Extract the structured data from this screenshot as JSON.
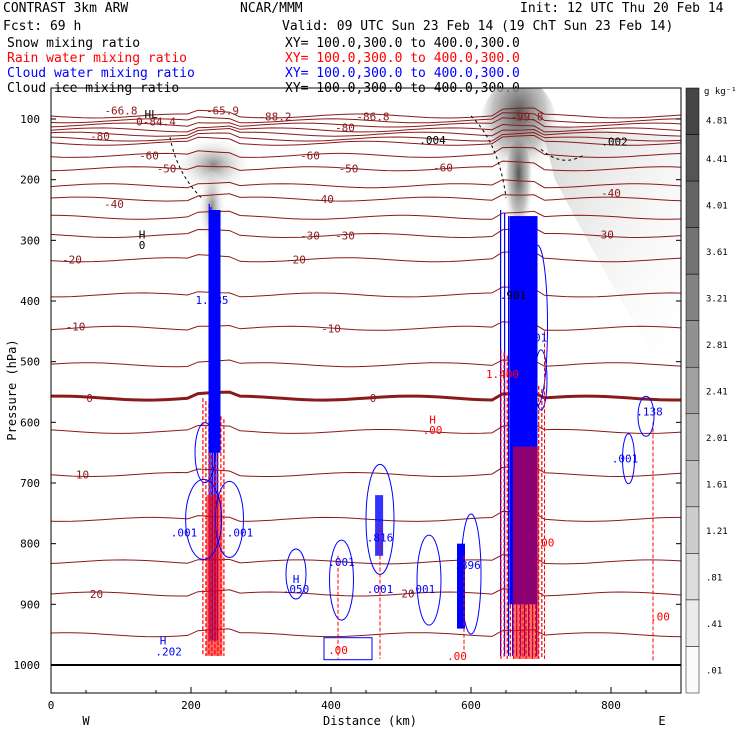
{
  "header": {
    "title_left": "CONTRAST  3km ARW",
    "title_center": "NCAR/MMM",
    "init": "Init: 12 UTC Thu 20 Feb 14",
    "fcst": "Fcst:   69 h",
    "valid": "Valid: 09 UTC Sun 23 Feb 14 (19 ChT Sun 23 Feb 14)"
  },
  "fields": [
    {
      "name": "Snow mixing ratio",
      "xy": "XY= 100.0,300.0 to 400.0,300.0",
      "color": "#000000"
    },
    {
      "name": "Rain water mixing ratio",
      "xy": "XY= 100.0,300.0 to 400.0,300.0",
      "color": "#ff0000"
    },
    {
      "name": "Cloud water mixing ratio",
      "xy": "XY= 100.0,300.0 to 400.0,300.0",
      "color": "#0000ff"
    },
    {
      "name": "Cloud ice mixing ratio",
      "xy": "XY= 100.0,300.0 to 400.0,300.0",
      "color": "#000000"
    }
  ],
  "colorbar": {
    "unit": "g kg⁻¹",
    "labels": [
      "4.81",
      "4.41",
      "4.01",
      "3.61",
      "3.21",
      "2.81",
      "2.41",
      "2.01",
      "1.61",
      "1.21",
      ".81",
      ".41",
      ".01"
    ]
  },
  "chart_data": {
    "type": "cross-section",
    "ylabel": "Pressure (hPa)",
    "xlabel": "Distance (km)",
    "x_left_label": "W",
    "x_right_label": "E",
    "x_ticks": [
      "0",
      "200",
      "400",
      "600",
      "800"
    ],
    "y_ticks": [
      "100",
      "200",
      "300",
      "400",
      "500",
      "600",
      "700",
      "800",
      "900",
      "1000"
    ],
    "xlim": [
      0,
      900
    ],
    "ylim": [
      1050,
      70
    ],
    "temperature_isotherms_C": [
      -80,
      -60,
      -50,
      -40,
      -30,
      -20,
      -10,
      0,
      10,
      20
    ],
    "isotherm_label_positions": [
      {
        "label": "-80",
        "x": 70,
        "p": 128
      },
      {
        "label": "-60",
        "x": 140,
        "p": 160
      },
      {
        "label": "-60",
        "x": 370,
        "p": 160
      },
      {
        "label": "-60",
        "x": 560,
        "p": 180
      },
      {
        "label": "-50",
        "x": 165,
        "p": 182
      },
      {
        "label": "-50",
        "x": 425,
        "p": 182
      },
      {
        "label": "-40",
        "x": 90,
        "p": 240
      },
      {
        "label": "-40",
        "x": 390,
        "p": 232
      },
      {
        "label": "-40",
        "x": 800,
        "p": 222
      },
      {
        "label": "-30",
        "x": 370,
        "p": 292
      },
      {
        "label": "-30",
        "x": 420,
        "p": 292
      },
      {
        "label": "-30",
        "x": 790,
        "p": 290
      },
      {
        "label": "-20",
        "x": 30,
        "p": 332
      },
      {
        "label": "-20",
        "x": 350,
        "p": 332
      },
      {
        "label": "-10",
        "x": 35,
        "p": 442
      },
      {
        "label": "-10",
        "x": 400,
        "p": 445
      },
      {
        "label": "0",
        "x": 55,
        "p": 560
      },
      {
        "label": "0",
        "x": 460,
        "p": 560
      },
      {
        "label": "10",
        "x": 45,
        "p": 686
      },
      {
        "label": "20",
        "x": 65,
        "p": 883
      },
      {
        "label": "20",
        "x": 510,
        "p": 882
      }
    ],
    "extrema_labels": [
      {
        "text": "-66.8",
        "x": 100,
        "p": 86,
        "color": "#8b1a1a"
      },
      {
        "text": "HL",
        "x": 143,
        "p": 92,
        "color": "#000000"
      },
      {
        "text": "0-84.4",
        "x": 150,
        "p": 104,
        "color": "#8b1a1a"
      },
      {
        "text": "-65.9",
        "x": 245,
        "p": 86,
        "color": "#8b1a1a"
      },
      {
        "text": "-88.2",
        "x": 320,
        "p": 96,
        "color": "#8b1a1a"
      },
      {
        "text": "-86.8",
        "x": 460,
        "p": 96,
        "color": "#8b1a1a"
      },
      {
        "text": "-99.8",
        "x": 680,
        "p": 96,
        "color": "#8b1a1a"
      },
      {
        "text": "-80",
        "x": 420,
        "p": 114,
        "color": "#8b1a1a"
      },
      {
        "text": ".004",
        "x": 545,
        "p": 135,
        "color": "#000000"
      },
      {
        "text": ".002",
        "x": 805,
        "p": 137,
        "color": "#000000"
      },
      {
        "text": "H",
        "x": 130,
        "p": 290,
        "color": "#000000"
      },
      {
        "text": "0",
        "x": 130,
        "p": 308,
        "color": "#000000"
      },
      {
        "text": "1.585",
        "x": 230,
        "p": 398,
        "color": "#0000ff"
      },
      {
        "text": ".901",
        "x": 660,
        "p": 390,
        "color": "#000000"
      },
      {
        "text": ".001",
        "x": 690,
        "p": 460,
        "color": "#0000ff"
      },
      {
        "text": "1.400",
        "x": 645,
        "p": 520,
        "color": "#ff0000"
      },
      {
        "text": "H",
        "x": 545,
        "p": 595,
        "color": "#ff0000"
      },
      {
        "text": ".00",
        "x": 545,
        "p": 613,
        "color": "#ff0000"
      },
      {
        "text": ".001",
        "x": 820,
        "p": 660,
        "color": "#0000ff"
      },
      {
        "text": ".138",
        "x": 855,
        "p": 582,
        "color": "#0000ff"
      },
      {
        "text": ".001",
        "x": 190,
        "p": 782,
        "color": "#0000ff"
      },
      {
        "text": ".001",
        "x": 270,
        "p": 782,
        "color": "#0000ff"
      },
      {
        "text": ".816",
        "x": 470,
        "p": 790,
        "color": "#0000ff"
      },
      {
        "text": ".001",
        "x": 415,
        "p": 830,
        "color": "#0000ff"
      },
      {
        "text": ".896",
        "x": 595,
        "p": 835,
        "color": "#0000ff"
      },
      {
        "text": "H",
        "x": 350,
        "p": 858,
        "color": "#0000ff"
      },
      {
        "text": ".050",
        "x": 350,
        "p": 875,
        "color": "#0000ff"
      },
      {
        "text": ".001",
        "x": 470,
        "p": 875,
        "color": "#0000ff"
      },
      {
        "text": ".001",
        "x": 530,
        "p": 875,
        "color": "#0000ff"
      },
      {
        "text": "H",
        "x": 160,
        "p": 960,
        "color": "#0000ff"
      },
      {
        "text": ".202",
        "x": 168,
        "p": 978,
        "color": "#0000ff"
      },
      {
        "text": ".00",
        "x": 410,
        "p": 975,
        "color": "#ff0000"
      },
      {
        "text": ".00",
        "x": 580,
        "p": 985,
        "color": "#ff0000"
      },
      {
        "text": ".00",
        "x": 705,
        "p": 798,
        "color": "#ff0000"
      },
      {
        "text": ".00",
        "x": 870,
        "p": 920,
        "color": "#ff0000"
      }
    ],
    "convective_columns": [
      {
        "center_km": 232,
        "top_hPa": 240,
        "snow_max": 1.585,
        "rain_present": true
      },
      {
        "center_km": 668,
        "top_hPa": 110,
        "snow_max": 4.8,
        "rain_present": true
      }
    ]
  }
}
